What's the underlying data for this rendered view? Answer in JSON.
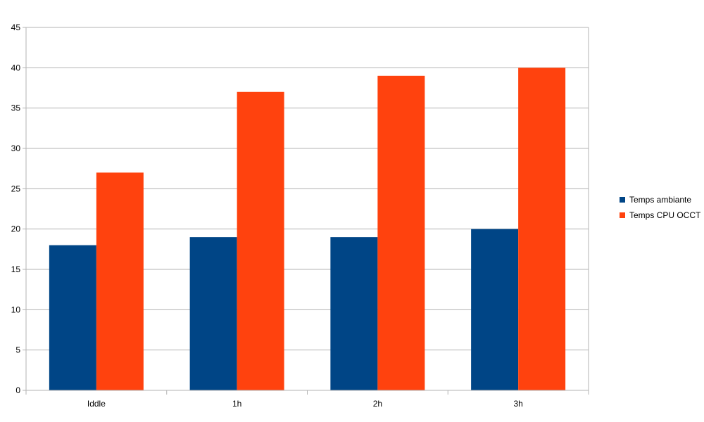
{
  "chart_data": {
    "type": "bar",
    "categories": [
      "Iddle",
      "1h",
      "2h",
      "3h"
    ],
    "series": [
      {
        "name": "Temps ambiante",
        "values": [
          18,
          19,
          19,
          20
        ],
        "color": "#004586"
      },
      {
        "name": "Temps CPU OCCT",
        "values": [
          27,
          37,
          39,
          40
        ],
        "color": "#ff420e"
      }
    ],
    "title": "",
    "xlabel": "",
    "ylabel": "",
    "ylim": [
      0,
      45
    ],
    "yticks": [
      0,
      5,
      10,
      15,
      20,
      25,
      30,
      35,
      40,
      45
    ],
    "grid": true,
    "legend_position": "right"
  }
}
